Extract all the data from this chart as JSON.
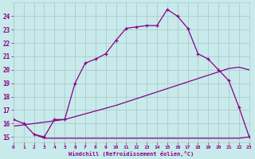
{
  "line1_x": [
    0,
    1,
    2,
    3,
    4,
    5,
    6,
    7,
    8,
    9,
    10,
    11,
    12,
    13,
    14,
    15,
    16,
    17,
    18,
    19,
    20,
    21,
    22,
    23
  ],
  "line1_y": [
    16.3,
    16.0,
    15.2,
    15.0,
    16.3,
    16.3,
    19.0,
    20.5,
    20.8,
    21.2,
    22.2,
    23.1,
    23.2,
    23.3,
    23.3,
    24.5,
    24.0,
    23.1,
    21.2,
    20.8,
    20.0,
    19.2,
    17.2,
    15.0
  ],
  "line2_x": [
    0,
    5,
    10,
    15,
    20,
    21,
    22,
    23
  ],
  "line2_y": [
    15.8,
    16.3,
    17.35,
    18.6,
    19.85,
    20.1,
    20.2,
    20.0
  ],
  "line3_x": [
    2,
    3,
    4,
    5,
    6,
    7,
    8,
    9,
    10,
    11,
    12,
    13,
    14,
    15,
    16,
    17,
    18,
    19,
    20,
    21,
    22,
    23
  ],
  "line3_y": [
    15.2,
    14.9,
    14.9,
    14.9,
    14.9,
    14.9,
    14.9,
    14.9,
    14.9,
    14.9,
    14.9,
    14.9,
    14.9,
    14.9,
    14.9,
    14.9,
    14.9,
    14.9,
    14.9,
    14.9,
    14.9,
    15.0
  ],
  "color": "#880088",
  "bg_color": "#c8eaea",
  "grid_color": "#aacccc",
  "xlabel": "Windchill (Refroidissement éolien,°C)",
  "xlim": [
    0,
    23
  ],
  "ylim": [
    14.6,
    25.0
  ],
  "yticks": [
    15,
    16,
    17,
    18,
    19,
    20,
    21,
    22,
    23,
    24
  ],
  "xticks": [
    0,
    1,
    2,
    3,
    4,
    5,
    6,
    7,
    8,
    9,
    10,
    11,
    12,
    13,
    14,
    15,
    16,
    17,
    18,
    19,
    20,
    21,
    22,
    23
  ],
  "marker": "+"
}
